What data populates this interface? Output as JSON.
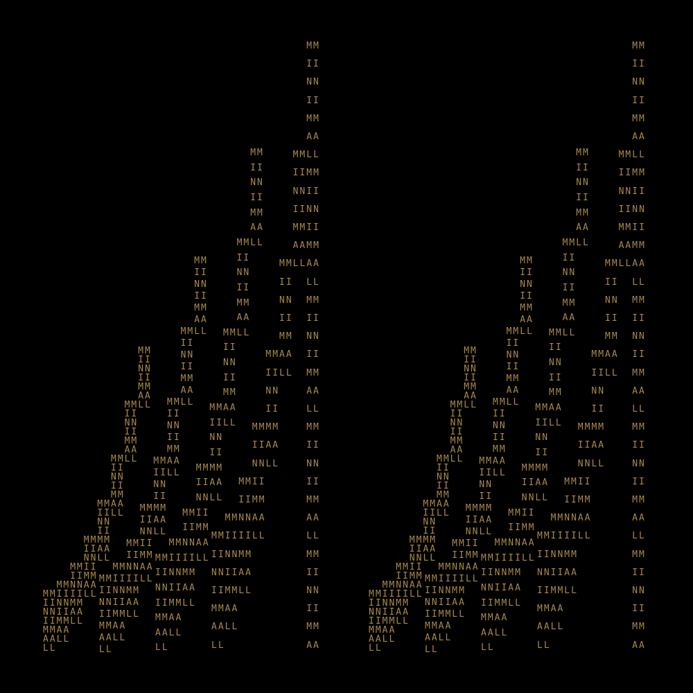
{
  "text_color": "#a88a4a",
  "background": "#000000",
  "patterns": {
    "full": [
      "              MM",
      "              II",
      "              NN",
      "              II",
      "              MM",
      "              AA",
      "            MMLL",
      "            IIMM",
      "            NNII",
      "            IINN",
      "            MMII",
      "            AAMM",
      "          MMLLAA",
      "          II  LL",
      "          NN  MM",
      "          II  II",
      "          MM  NN",
      "        MMAA  II",
      "        IILL  MM",
      "        NN    AA",
      "        II    LL",
      "      MMMM    MM",
      "      IIAA    II",
      "      NNLL    NN",
      "    MMII      II",
      "    IIMM      MM",
      "  MMNNAA      AA",
      "MMIIIILL      LL",
      "IINNMM        MM",
      "NNIIAA        II",
      "IIMMLL        NN",
      "MMAA          II",
      "AALL          MM",
      "LL            AA"
    ],
    "reduced": [
      "              MM",
      "              II",
      "              NN",
      "              II",
      "              MM",
      "              AA",
      "            MMLL",
      "            II",
      "            NN",
      "            II",
      "            MM",
      "            AA",
      "          MMLL",
      "          II",
      "          NN",
      "          II",
      "          MM",
      "        MMAA",
      "        IILL",
      "        NN",
      "        II",
      "      MMMM",
      "      IIAA",
      "      NNLL",
      "    MMII",
      "    IIMM",
      "  MMNNAA",
      "MMIIIILL",
      "IINNMM",
      "NNIIAA",
      "IIMMLL",
      "MMAA",
      "AALL",
      "LL"
    ]
  },
  "panels": [
    {
      "name": "left",
      "groups": [
        "full",
        "reduced",
        "reduced",
        "reduced"
      ]
    },
    {
      "name": "right",
      "groups": [
        "full",
        "reduced",
        "reduced",
        "reduced"
      ]
    }
  ]
}
